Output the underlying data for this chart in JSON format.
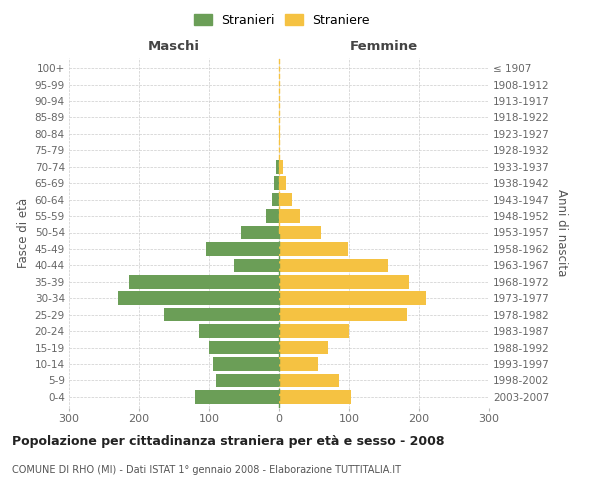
{
  "age_groups": [
    "0-4",
    "5-9",
    "10-14",
    "15-19",
    "20-24",
    "25-29",
    "30-34",
    "35-39",
    "40-44",
    "45-49",
    "50-54",
    "55-59",
    "60-64",
    "65-69",
    "70-74",
    "75-79",
    "80-84",
    "85-89",
    "90-94",
    "95-99",
    "100+"
  ],
  "birth_years": [
    "2003-2007",
    "1998-2002",
    "1993-1997",
    "1988-1992",
    "1983-1987",
    "1978-1982",
    "1973-1977",
    "1968-1972",
    "1963-1967",
    "1958-1962",
    "1953-1957",
    "1948-1952",
    "1943-1947",
    "1938-1942",
    "1933-1937",
    "1928-1932",
    "1923-1927",
    "1918-1922",
    "1913-1917",
    "1908-1912",
    "≤ 1907"
  ],
  "males": [
    120,
    90,
    95,
    100,
    115,
    165,
    230,
    215,
    65,
    105,
    55,
    18,
    10,
    7,
    5,
    0,
    0,
    0,
    0,
    0,
    0
  ],
  "females": [
    103,
    85,
    55,
    70,
    100,
    183,
    210,
    185,
    155,
    98,
    60,
    30,
    18,
    10,
    5,
    0,
    2,
    0,
    0,
    0,
    0
  ],
  "male_color": "#6b9e57",
  "female_color": "#f5c242",
  "grid_color": "#cccccc",
  "center_line_color_top": "#f5c242",
  "center_line_color_bottom": "#6b9e57",
  "title": "Popolazione per cittadinanza straniera per età e sesso - 2008",
  "subtitle": "COMUNE DI RHO (MI) - Dati ISTAT 1° gennaio 2008 - Elaborazione TUTTITALIA.IT",
  "header_left": "Maschi",
  "header_right": "Femmine",
  "ylabel_left": "Fasce di età",
  "ylabel_right": "Anni di nascita",
  "legend_male": "Stranieri",
  "legend_female": "Straniere",
  "xlim": 300,
  "bar_height": 0.82
}
